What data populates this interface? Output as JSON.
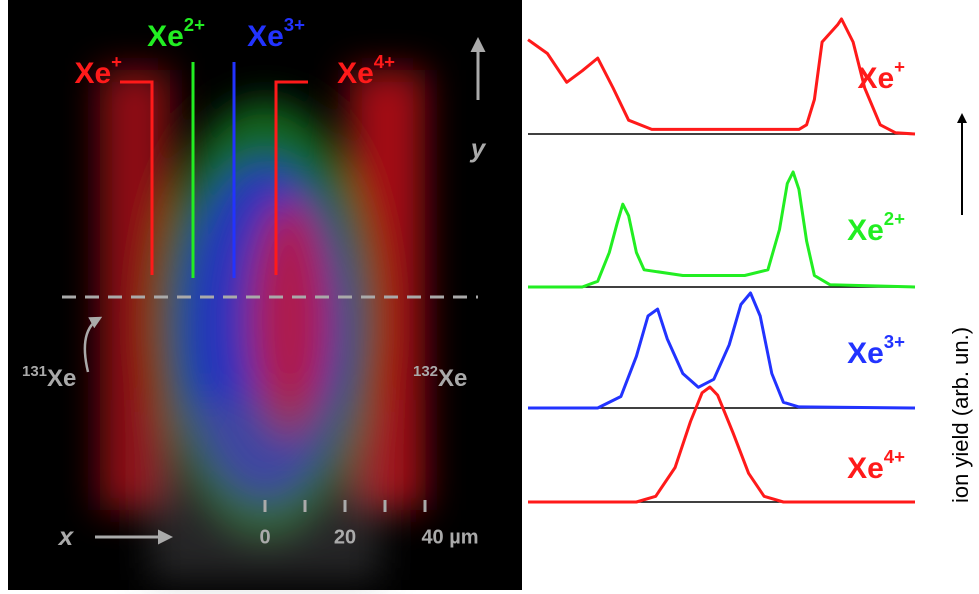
{
  "image": {
    "labels": [
      {
        "base": "Xe",
        "charge": "+",
        "color": "#ff1a1a"
      },
      {
        "base": "Xe",
        "charge": "2+",
        "color": "#22ee22"
      },
      {
        "base": "Xe",
        "charge": "3+",
        "color": "#2233ff"
      },
      {
        "base": "Xe",
        "charge": "4+",
        "color": "#ff1a1a"
      }
    ],
    "y_axis": "y",
    "x_axis": "x",
    "isotopes": [
      {
        "mass": "131",
        "base": "Xe"
      },
      {
        "mass": "132",
        "base": "Xe"
      }
    ],
    "scale_labels": [
      "0",
      "20",
      "40 µm"
    ]
  },
  "y_label": "ion yield (arb. un.)",
  "chart_data": [
    {
      "type": "line",
      "label": {
        "base": "Xe",
        "charge": "+"
      },
      "color": "#ff1a1a",
      "xlim": [
        0,
        100
      ],
      "ylim": [
        0,
        1
      ],
      "x": [
        0,
        5,
        10,
        14,
        18,
        22,
        26,
        32,
        70,
        72,
        74,
        76,
        80,
        81,
        84,
        87,
        91,
        95,
        100
      ],
      "values": [
        0.82,
        0.7,
        0.45,
        0.55,
        0.66,
        0.4,
        0.12,
        0.04,
        0.04,
        0.08,
        0.3,
        0.8,
        0.95,
        1.0,
        0.8,
        0.4,
        0.08,
        0.01,
        0
      ]
    },
    {
      "type": "line",
      "label": {
        "base": "Xe",
        "charge": "2+"
      },
      "color": "#22ee22",
      "xlim": [
        0,
        100
      ],
      "ylim": [
        0,
        1
      ],
      "x": [
        0,
        14,
        18,
        21,
        23,
        24.5,
        26,
        28,
        30,
        40,
        56,
        62,
        65,
        67,
        68.5,
        70,
        72,
        74,
        78,
        100
      ],
      "values": [
        0,
        0,
        0.05,
        0.3,
        0.55,
        0.72,
        0.62,
        0.3,
        0.15,
        0.1,
        0.1,
        0.15,
        0.5,
        0.9,
        1.0,
        0.85,
        0.4,
        0.1,
        0.02,
        0
      ]
    },
    {
      "type": "line",
      "label": {
        "base": "Xe",
        "charge": "3+"
      },
      "color": "#2233ff",
      "xlim": [
        0,
        100
      ],
      "ylim": [
        0,
        1
      ],
      "x": [
        0,
        18,
        24,
        28,
        31,
        33.5,
        36,
        40,
        44,
        48,
        52,
        55,
        57.5,
        60,
        63,
        66,
        70,
        100
      ],
      "values": [
        0,
        0,
        0.1,
        0.45,
        0.8,
        0.86,
        0.6,
        0.3,
        0.18,
        0.25,
        0.55,
        0.9,
        1.0,
        0.8,
        0.3,
        0.05,
        0.01,
        0
      ]
    },
    {
      "type": "line",
      "label": {
        "base": "Xe",
        "charge": "4+"
      },
      "color": "#ff1a1a",
      "xlim": [
        0,
        100
      ],
      "ylim": [
        0,
        1
      ],
      "x": [
        0,
        28,
        33,
        38,
        42,
        45,
        47,
        49,
        53,
        57,
        61,
        66,
        100
      ],
      "values": [
        0,
        0,
        0.05,
        0.3,
        0.7,
        0.95,
        1.0,
        0.93,
        0.6,
        0.25,
        0.05,
        0,
        0
      ]
    }
  ]
}
